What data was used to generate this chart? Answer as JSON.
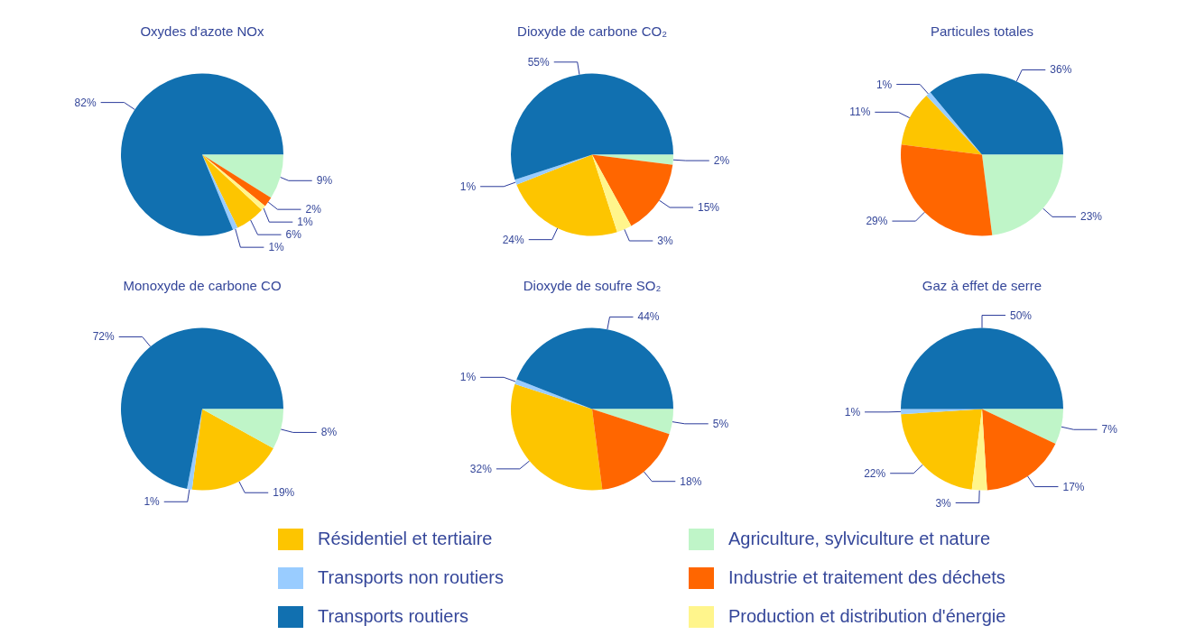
{
  "chart_data": [
    {
      "type": "pie",
      "title": "Oxydes d'azote NOx",
      "categories": [
        "Résidentiel et tertiaire",
        "Transports non routiers",
        "Transports routiers",
        "Agriculture, sylviculture et nature",
        "Industrie et traitement des déchets",
        "Production et distribution d'énergie"
      ],
      "values": [
        6,
        1,
        82,
        9,
        2,
        1
      ],
      "value_labels": [
        "6%",
        "1%",
        "82%",
        "9%",
        "2%",
        "1%"
      ],
      "colors": [
        "#fdc500",
        "#99ccff",
        "#1170b0",
        "#bff5c8",
        "#ff6600",
        "#fff58c"
      ],
      "legend": "bottom"
    },
    {
      "type": "pie",
      "title": "Dioxyde de carbone CO₂",
      "categories": [
        null,
        null,
        null,
        null,
        null,
        null
      ],
      "values": [
        24,
        1,
        55,
        2,
        15,
        3
      ],
      "value_labels": [
        "24%",
        "1%",
        "55%",
        "2%",
        "15%",
        "3%"
      ],
      "colors": [
        "#fdc500",
        "#99ccff",
        "#1170b0",
        "#bff5c8",
        "#ff6600",
        "#fff58c"
      ]
    },
    {
      "type": "pie",
      "title": "Particules totales",
      "categories": [
        null,
        null,
        null,
        null,
        null
      ],
      "values": [
        11,
        1,
        36,
        23,
        29
      ],
      "value_labels": [
        "11%",
        "1%",
        "36%",
        "23%",
        "29%"
      ],
      "colors": [
        "#fdc500",
        "#99ccff",
        "#1170b0",
        "#bff5c8",
        "#ff6600"
      ]
    },
    {
      "type": "pie",
      "title": "Monoxyde de carbone CO",
      "categories": [
        null,
        null,
        null,
        null
      ],
      "values": [
        19,
        1,
        72,
        8
      ],
      "value_labels": [
        "19%",
        "1%",
        "72%",
        "8%"
      ],
      "colors": [
        "#fdc500",
        "#99ccff",
        "#1170b0",
        "#bff5c8"
      ]
    },
    {
      "type": "pie",
      "title": "Dioxyde de soufre SO₂",
      "categories": [
        null,
        null,
        null,
        null,
        null
      ],
      "values": [
        32,
        1,
        44,
        5,
        18
      ],
      "value_labels": [
        "32%",
        "1%",
        "44%",
        "5%",
        "18%"
      ],
      "colors": [
        "#fdc500",
        "#99ccff",
        "#1170b0",
        "#bff5c8",
        "#ff6600"
      ]
    },
    {
      "type": "pie",
      "title": "Gaz à effet de serre",
      "categories": [
        null,
        null,
        null,
        null,
        null,
        null
      ],
      "values": [
        22,
        1,
        50,
        7,
        17,
        3
      ],
      "value_labels": [
        "22%",
        "1%",
        "50%",
        "7%",
        "17%",
        "3%"
      ],
      "colors": [
        "#fdc500",
        "#99ccff",
        "#1170b0",
        "#bff5c8",
        "#ff6600",
        "#fff58c"
      ]
    }
  ]
}
